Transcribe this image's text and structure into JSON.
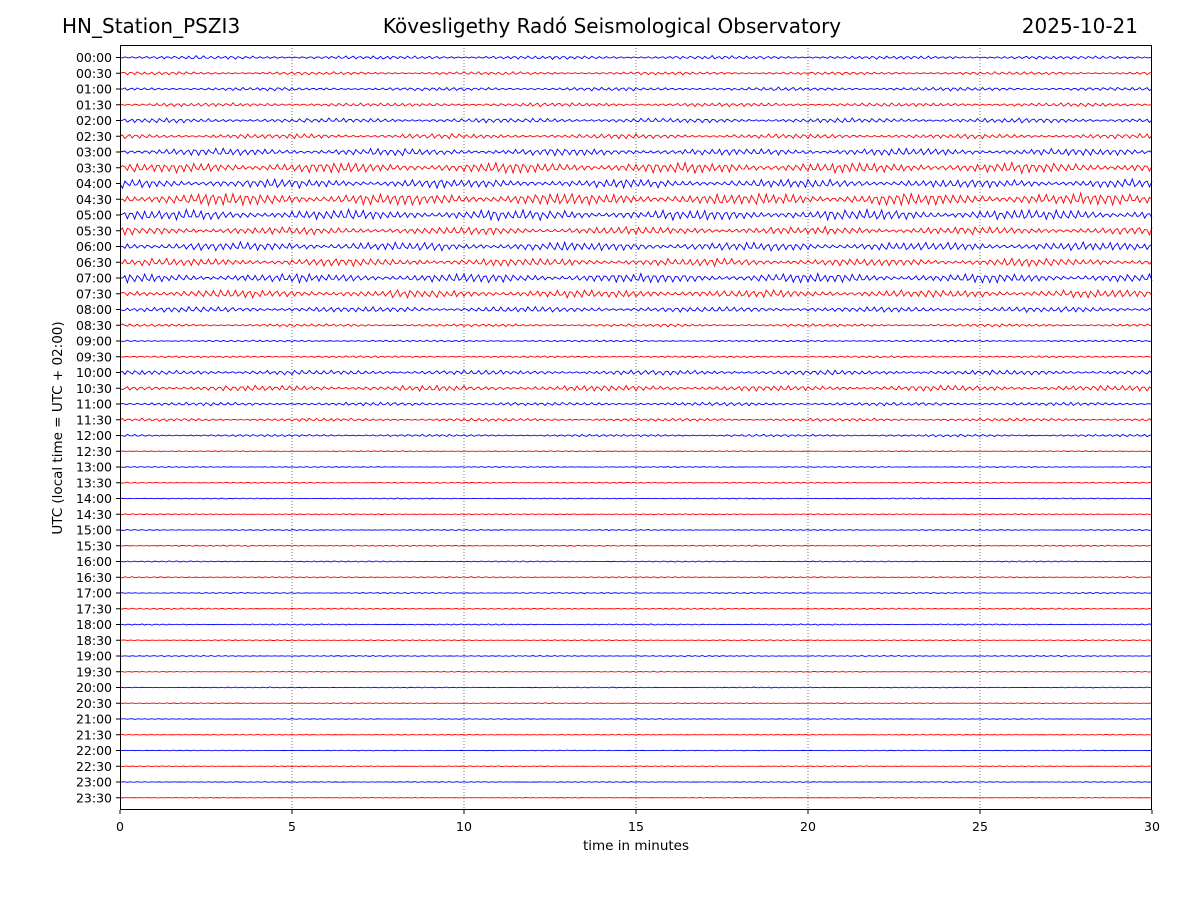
{
  "header": {
    "station": "HN_Station_PSZI3",
    "title": "Kövesligethy Radó Seismological Observatory",
    "date": "2025-10-21"
  },
  "chart_data": {
    "type": "line",
    "title": "Kövesligethy Radó Seismological Observatory",
    "xlabel": "time in minutes",
    "ylabel": "UTC (local time = UTC + 02:00)",
    "xlim": [
      0,
      30
    ],
    "x_ticks": [
      "0",
      "5",
      "10",
      "15",
      "20",
      "25",
      "30"
    ],
    "grid": "vertical dotted lines at 5-minute intervals",
    "colors": {
      "even_hour": "#0000ff",
      "half_hour": "#ff0000",
      "grid": "#555555",
      "frame": "#000000"
    },
    "traces": [
      {
        "label": "00:00",
        "amplitude": 0.22
      },
      {
        "label": "00:30",
        "amplitude": 0.2
      },
      {
        "label": "01:00",
        "amplitude": 0.22
      },
      {
        "label": "01:30",
        "amplitude": 0.24
      },
      {
        "label": "02:00",
        "amplitude": 0.3
      },
      {
        "label": "02:30",
        "amplitude": 0.3
      },
      {
        "label": "03:00",
        "amplitude": 0.45
      },
      {
        "label": "03:30",
        "amplitude": 0.65
      },
      {
        "label": "04:00",
        "amplitude": 0.55
      },
      {
        "label": "04:30",
        "amplitude": 0.75
      },
      {
        "label": "05:00",
        "amplitude": 0.65
      },
      {
        "label": "05:30",
        "amplitude": 0.5
      },
      {
        "label": "06:00",
        "amplitude": 0.55
      },
      {
        "label": "06:30",
        "amplitude": 0.5
      },
      {
        "label": "07:00",
        "amplitude": 0.55
      },
      {
        "label": "07:30",
        "amplitude": 0.5
      },
      {
        "label": "08:00",
        "amplitude": 0.35
      },
      {
        "label": "08:30",
        "amplitude": 0.18
      },
      {
        "label": "09:00",
        "amplitude": 0.12
      },
      {
        "label": "09:30",
        "amplitude": 0.12
      },
      {
        "label": "10:00",
        "amplitude": 0.3
      },
      {
        "label": "10:30",
        "amplitude": 0.35
      },
      {
        "label": "11:00",
        "amplitude": 0.22
      },
      {
        "label": "11:30",
        "amplitude": 0.2
      },
      {
        "label": "12:00",
        "amplitude": 0.15
      },
      {
        "label": "12:30",
        "amplitude": 0.06
      },
      {
        "label": "13:00",
        "amplitude": 0.06
      },
      {
        "label": "13:30",
        "amplitude": 0.07
      },
      {
        "label": "14:00",
        "amplitude": 0.07
      },
      {
        "label": "14:30",
        "amplitude": 0.07
      },
      {
        "label": "15:00",
        "amplitude": 0.07
      },
      {
        "label": "15:30",
        "amplitude": 0.08
      },
      {
        "label": "16:00",
        "amplitude": 0.08
      },
      {
        "label": "16:30",
        "amplitude": 0.08
      },
      {
        "label": "17:00",
        "amplitude": 0.08
      },
      {
        "label": "17:30",
        "amplitude": 0.09
      },
      {
        "label": "18:00",
        "amplitude": 0.08
      },
      {
        "label": "18:30",
        "amplitude": 0.07
      },
      {
        "label": "19:00",
        "amplitude": 0.07
      },
      {
        "label": "19:30",
        "amplitude": 0.06
      },
      {
        "label": "20:00",
        "amplitude": 0.06
      },
      {
        "label": "20:30",
        "amplitude": 0.06
      },
      {
        "label": "21:00",
        "amplitude": 0.05
      },
      {
        "label": "21:30",
        "amplitude": 0.05
      },
      {
        "label": "22:00",
        "amplitude": 0.05
      },
      {
        "label": "22:30",
        "amplitude": 0.05
      },
      {
        "label": "23:00",
        "amplitude": 0.05
      },
      {
        "label": "23:30",
        "amplitude": 0.04
      }
    ]
  }
}
